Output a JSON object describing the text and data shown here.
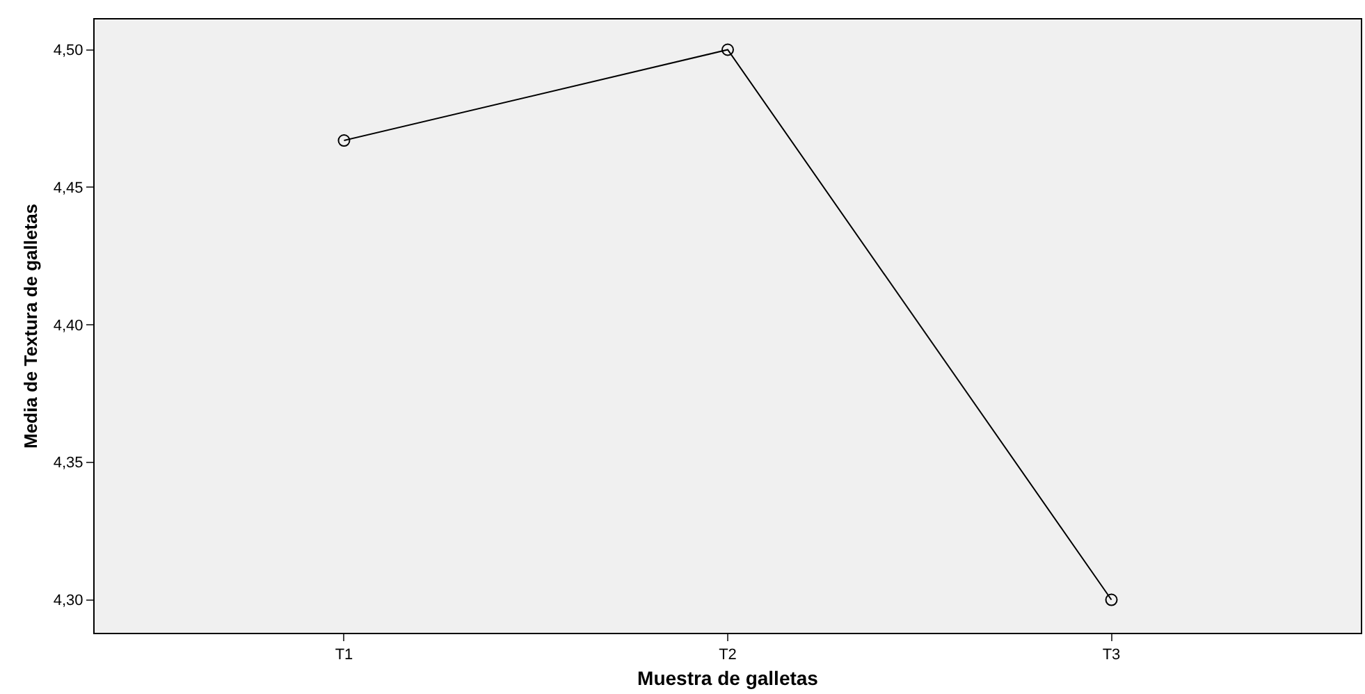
{
  "chart_data": {
    "type": "line",
    "xlabel": "Muestra de galletas",
    "ylabel": "Media de Textura de galletas",
    "categories": [
      "T1",
      "T2",
      "T3"
    ],
    "series": [
      {
        "color": "#000000",
        "values": [
          4.467,
          4.5,
          4.3
        ]
      }
    ],
    "ylim": [
      4.288,
      4.511
    ],
    "yticks": [
      {
        "value": 4.3,
        "label": "4,30"
      },
      {
        "value": 4.35,
        "label": "4,35"
      },
      {
        "value": 4.4,
        "label": "4,40"
      },
      {
        "value": 4.45,
        "label": "4,45"
      },
      {
        "value": 4.5,
        "label": "4,50"
      }
    ],
    "marker": "circle",
    "line_style": "solid"
  }
}
